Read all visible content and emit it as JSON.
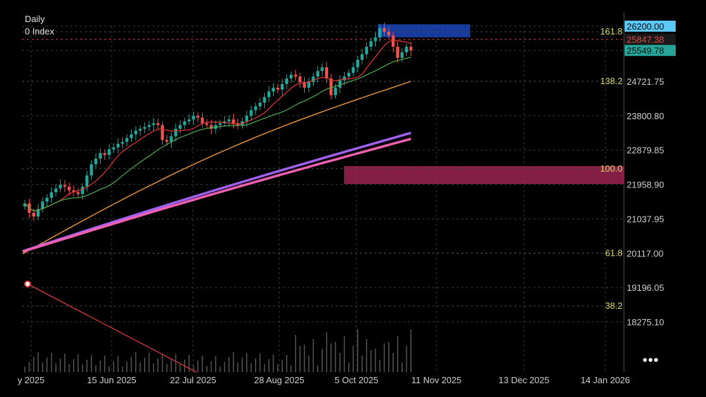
{
  "header": {
    "timeframe": "Daily",
    "symbol": "0 Index"
  },
  "menu": {
    "more_label": "•••"
  },
  "chart_data": {
    "type": "candlestick",
    "y_ticks": [
      "26200.00",
      "25847.38",
      "25549.78",
      "24721.75",
      "23800.80",
      "22879.85",
      "21958.90",
      "21037.95",
      "20117.00",
      "19196.05",
      "18275.10"
    ],
    "y_tick_values": [
      26200.0,
      25847.38,
      25549.78,
      24721.75,
      23800.8,
      22879.85,
      21958.9,
      21037.95,
      20117.0,
      19196.05,
      18275.1
    ],
    "highlighted_prices": [
      {
        "label": "26200.00",
        "value": 26200.0,
        "color": "#5bc8f5"
      },
      {
        "label": "25847.38",
        "value": 25847.38,
        "color": "#d9403e"
      },
      {
        "label": "25549.78",
        "value": 25549.78,
        "color": "#26a69a"
      }
    ],
    "x_ticks": [
      "y 2025",
      "15 Jun 2025",
      "22 Jul 2025",
      "28 Aug 2025",
      "5 Oct 2025",
      "11 Nov 2025",
      "13 Dec 2025",
      "14 Jan 2026"
    ],
    "fib_levels": [
      {
        "label": "161.8",
        "value": 26050
      },
      {
        "label": "138.2",
        "value": 24720
      },
      {
        "label": "100.0",
        "value": 22380
      },
      {
        "label": "61.8",
        "value": 20117
      },
      {
        "label": "38.2",
        "value": 18700
      }
    ],
    "zones": [
      {
        "type": "supply",
        "y_from": 25900,
        "y_to": 26250,
        "color": "#1f4fd0"
      },
      {
        "type": "demand",
        "y_from": 21970,
        "y_to": 22450,
        "color": "#b0285c"
      }
    ],
    "close_series": [
      21450,
      21200,
      21100,
      21300,
      21500,
      21600,
      21750,
      21850,
      21950,
      21900,
      21800,
      21750,
      21700,
      21900,
      22200,
      22500,
      22650,
      22800,
      22750,
      22900,
      22950,
      23050,
      23100,
      23200,
      23300,
      23400,
      23450,
      23500,
      23550,
      23600,
      23550,
      23150,
      23100,
      23250,
      23450,
      23550,
      23650,
      23700,
      23800,
      23750,
      23600,
      23550,
      23450,
      23550,
      23600,
      23650,
      23700,
      23600,
      23550,
      23650,
      23800,
      23950,
      24050,
      24150,
      24300,
      24450,
      24550,
      24500,
      24650,
      24800,
      24900,
      24850,
      24700,
      24550,
      24700,
      24850,
      25000,
      25100,
      24800,
      24350,
      24550,
      24750,
      24850,
      24950,
      25100,
      25300,
      25450,
      25650,
      25800,
      25900,
      26150,
      26050,
      25950,
      25650,
      25350,
      25500,
      25650,
      25549.78
    ],
    "moving_averages": [
      {
        "color": "#e0903a",
        "start": 20100,
        "end": 24720
      },
      {
        "color": "#a060f0",
        "start": 20170,
        "end": 23340
      },
      {
        "color": "#f060b0",
        "start": 20160,
        "end": 23180
      }
    ]
  }
}
